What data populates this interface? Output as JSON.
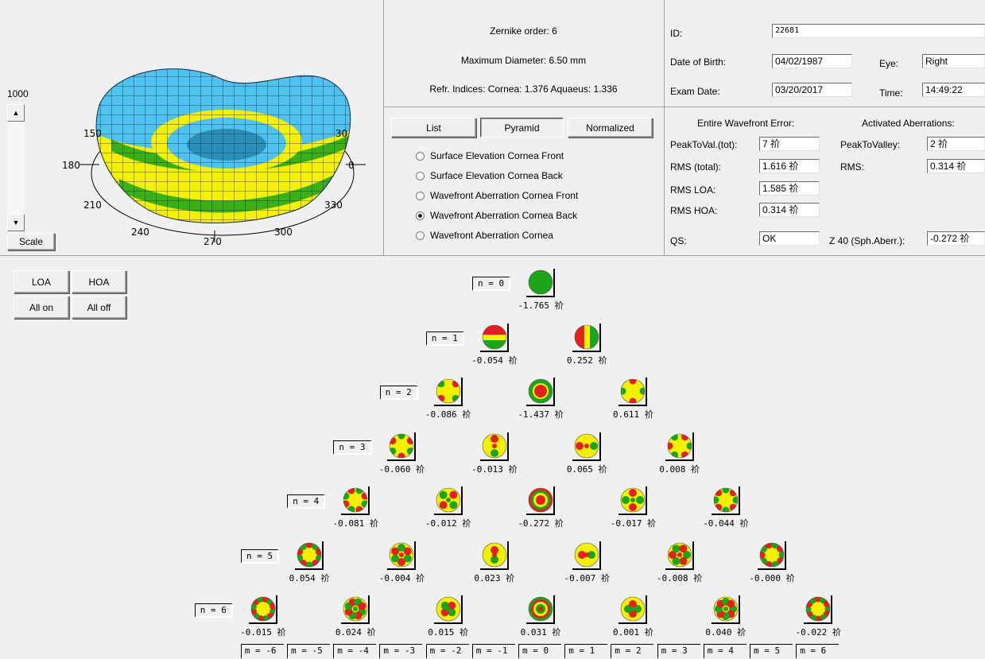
{
  "scale": {
    "max_label": "1000",
    "button_label": "Scale"
  },
  "plot3d": {
    "angle_labels": [
      "150",
      "180",
      "210",
      "240",
      "270",
      "300",
      "330",
      "0",
      "30"
    ]
  },
  "info": {
    "zernike_order": "Zernike order: 6",
    "max_diameter": "Maximum Diameter: 6.50 mm",
    "refr_indices": "Refr. Indices:  Cornea: 1.376  Aquaeus: 1.336"
  },
  "patient": {
    "id_label": "ID:",
    "id_value": "22681",
    "dob_label": "Date of Birth:",
    "dob_value": "04/02/1987",
    "eye_label": "Eye:",
    "eye_value": "Right",
    "exam_label": "Exam Date:",
    "exam_value": "03/20/2017",
    "time_label": "Time:",
    "time_value": "14:49:22"
  },
  "view_buttons": {
    "list": "List",
    "pyramid": "Pyramid",
    "normalized": "Normalized"
  },
  "radio_options": [
    "Surface Elevation Cornea Front",
    "Surface Elevation Cornea Back",
    "Wavefront Aberration Cornea Front",
    "Wavefront Aberration Cornea Back",
    "Wavefront Aberration Cornea"
  ],
  "selected_radio_index": 3,
  "wavefront": {
    "entire_title": "Entire Wavefront Error:",
    "activated_title": "Activated Aberrations:",
    "ptv_tot_label": "PeakToVal.(tot):",
    "ptv_tot_value": "7 祄",
    "rms_total_label": "RMS (total):",
    "rms_total_value": "1.616 祄",
    "rms_loa_label": "RMS LOA:",
    "rms_loa_value": "1.585 祄",
    "rms_hoa_label": "RMS HOA:",
    "rms_hoa_value": "0.314 祄",
    "qs_label": "QS:",
    "qs_value": "OK",
    "ptv_label": "PeakToValley:",
    "ptv_value": "2 祄",
    "rms_label": "RMS:",
    "rms_value": "0.314 祄",
    "z40_label": "Z 40 (Sph.Aberr.):",
    "z40_value": "-0.272 祄"
  },
  "aberration_buttons": {
    "loa": "LOA",
    "hoa": "HOA",
    "all_on": "All on",
    "all_off": "All off"
  },
  "pyramid": {
    "rows": [
      {
        "label": "n = 0",
        "values": [
          "-1.765 祄"
        ]
      },
      {
        "label": "n = 1",
        "values": [
          "-0.054 祄",
          "0.252 祄"
        ]
      },
      {
        "label": "n = 2",
        "values": [
          "-0.086 祄",
          "-1.437 祄",
          "0.611 祄"
        ]
      },
      {
        "label": "n = 3",
        "values": [
          "-0.060 祄",
          "-0.013 祄",
          "0.065 祄",
          "0.008 祄"
        ]
      },
      {
        "label": "n = 4",
        "values": [
          "-0.081 祄",
          "-0.012 祄",
          "-0.272 祄",
          "-0.017 祄",
          "-0.044 祄"
        ]
      },
      {
        "label": "n = 5",
        "values": [
          "0.054 祄",
          "-0.004 祄",
          "0.023 祄",
          "-0.007 祄",
          "-0.008 祄",
          "-0.000 祄"
        ]
      },
      {
        "label": "n = 6",
        "values": [
          "-0.015 祄",
          "0.024 祄",
          "0.015 祄",
          "0.031 祄",
          "0.001 祄",
          "0.040 祄",
          "-0.022 祄"
        ]
      }
    ],
    "m_labels": [
      "m = -6",
      "m = -5",
      "m = -4",
      "m = -3",
      "m = -2",
      "m = -1",
      "m = 0",
      "m = 1",
      "m = 2",
      "m = 3",
      "m = 4",
      "m = 5",
      "m = 6"
    ]
  },
  "colors": {
    "red": "#e3201b",
    "green": "#1aa51a",
    "yellow": "#f5f000",
    "surface_blue": "#4ec3f0"
  }
}
